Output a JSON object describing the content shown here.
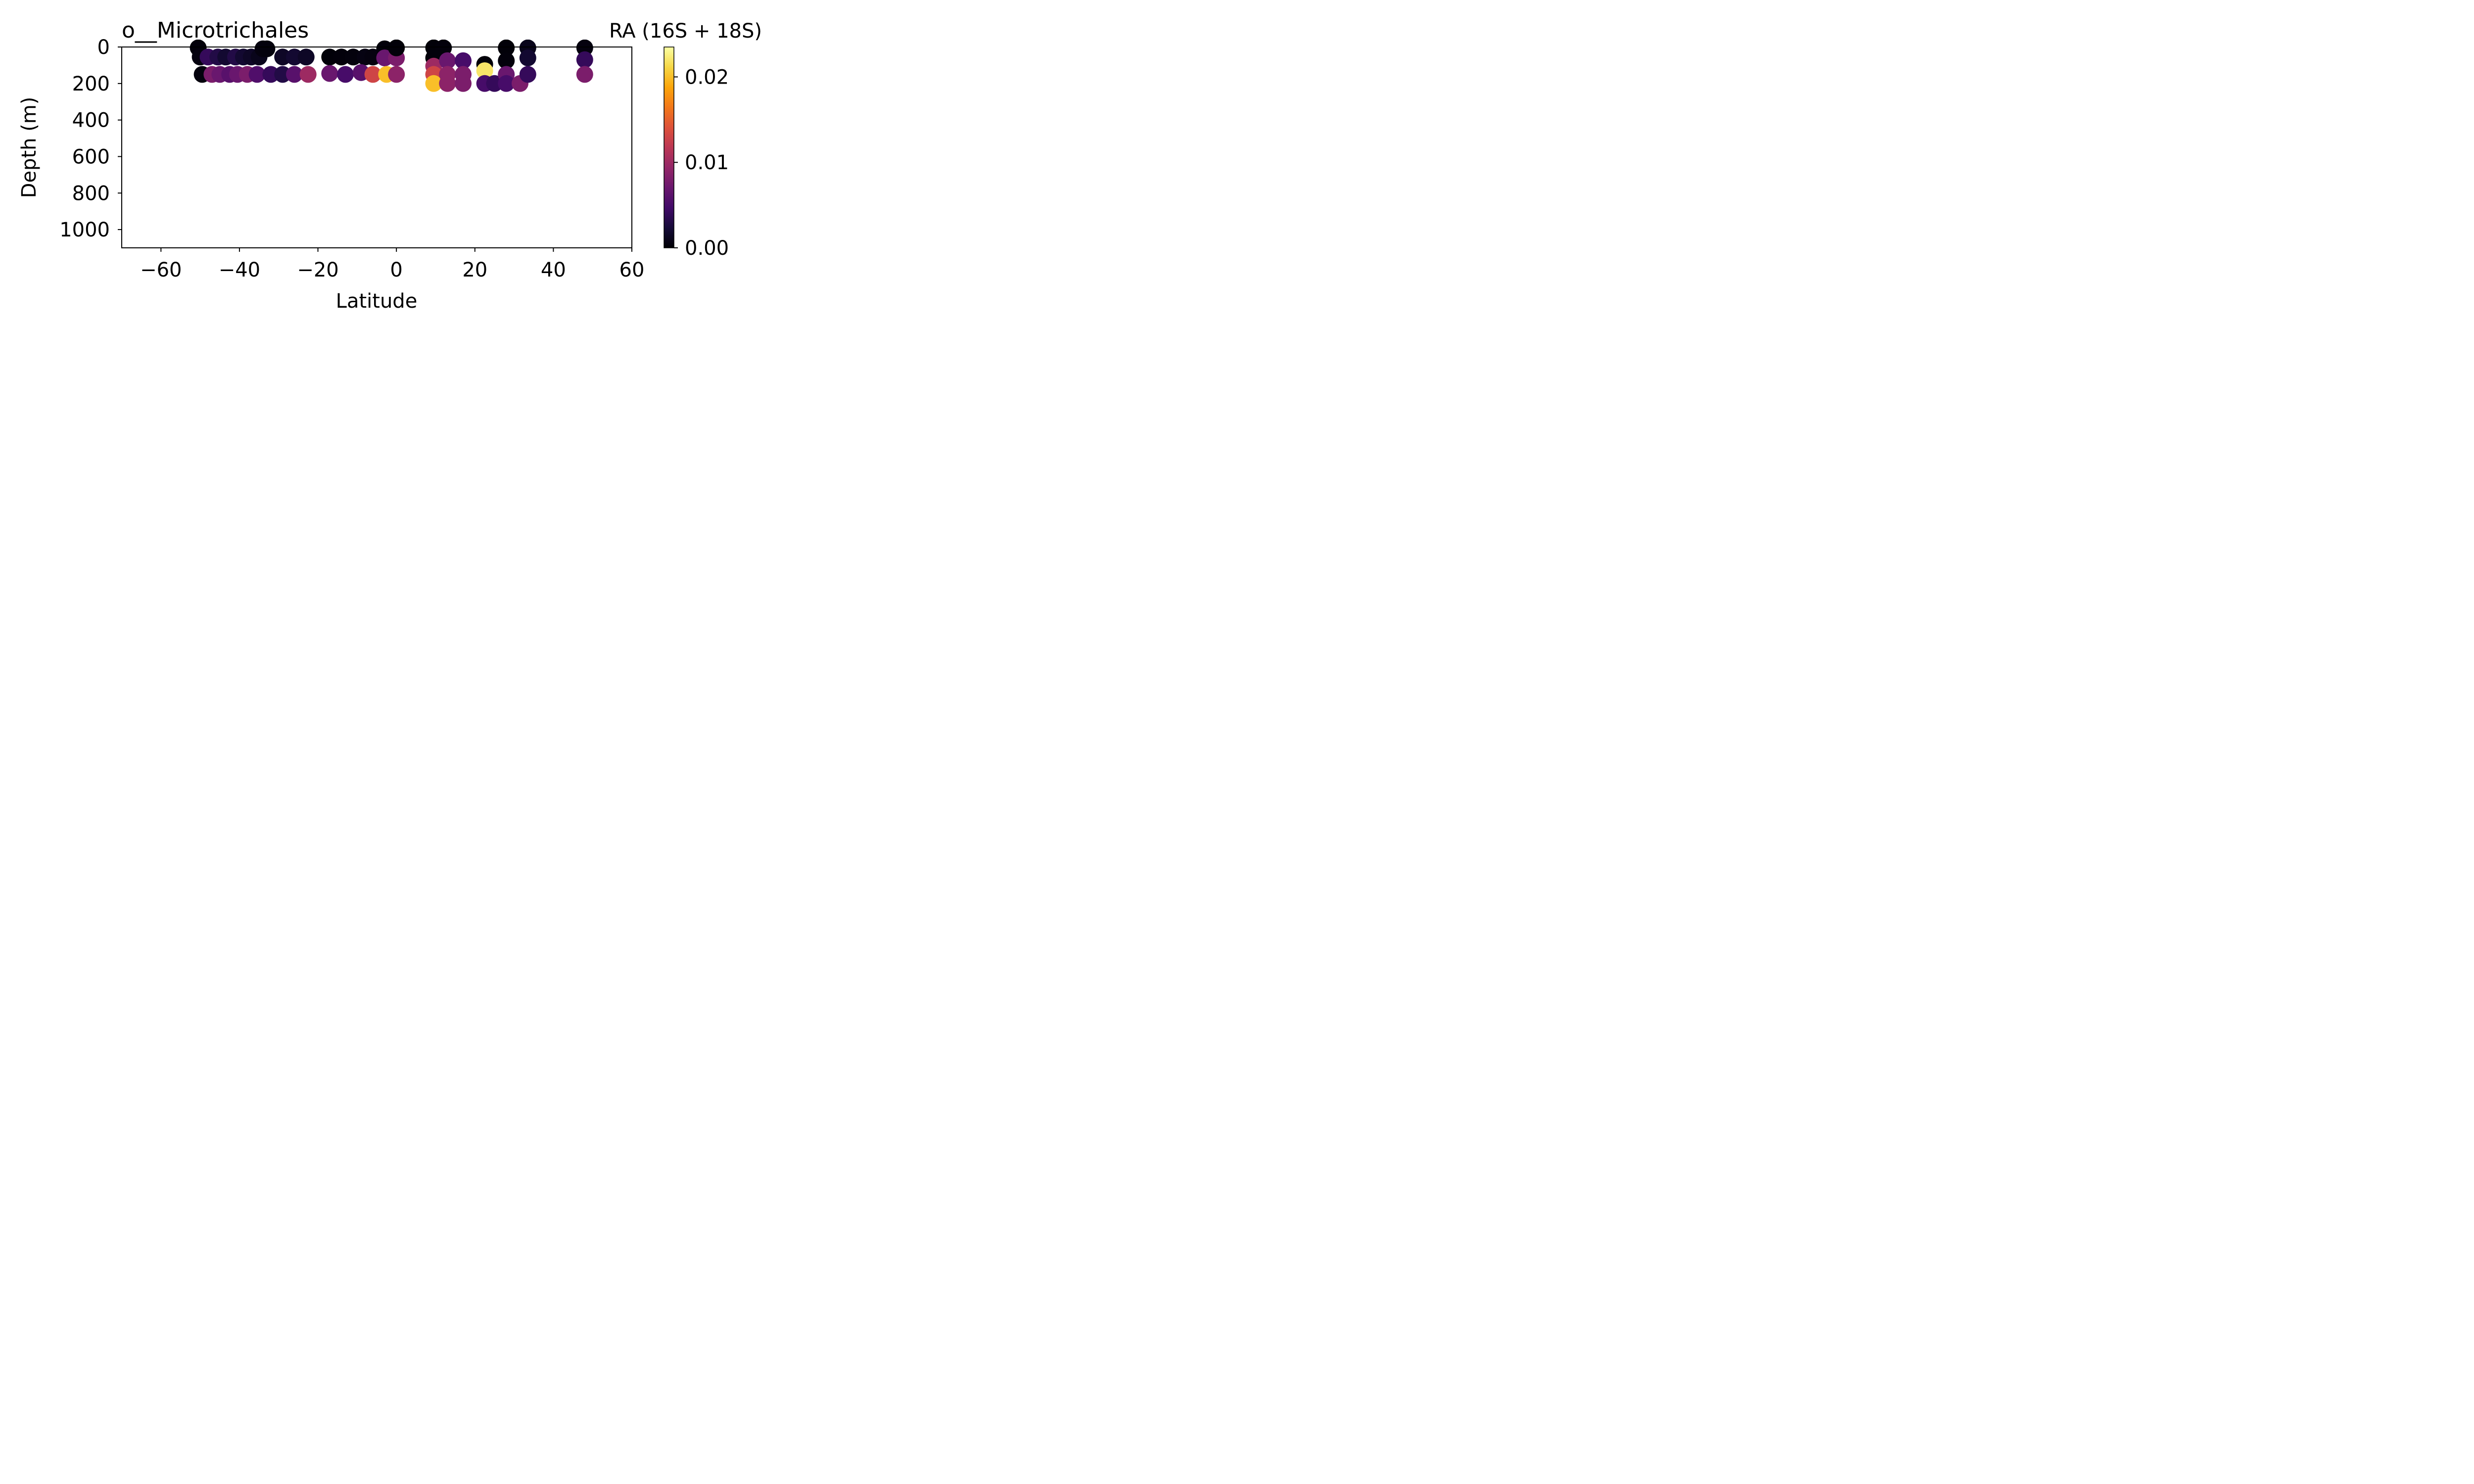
{
  "chart_data": {
    "type": "scatter",
    "title": "o__Microtrichales",
    "colorbar_label": "RA (16S + 18S)",
    "xlabel": "Latitude",
    "ylabel": "Depth (m)",
    "xlim": [
      -70,
      60
    ],
    "ylim": [
      1100,
      0
    ],
    "y_inverted": true,
    "x_ticks": [
      -60,
      -40,
      -20,
      0,
      20,
      40,
      60
    ],
    "x_tick_labels": [
      "−60",
      "−40",
      "−20",
      "0",
      "20",
      "40",
      "60"
    ],
    "y_ticks": [
      0,
      200,
      400,
      600,
      800,
      1000
    ],
    "y_tick_labels": [
      "0",
      "200",
      "400",
      "600",
      "800",
      "1000"
    ],
    "colorbar_range": [
      0,
      0.0235
    ],
    "colorbar_ticks": [
      0.0,
      0.01,
      0.02
    ],
    "colorbar_tick_labels": [
      "0.00",
      "0.01",
      "0.02"
    ],
    "colormap": "inferno",
    "grid": false,
    "points": [
      {
        "lat": -50.5,
        "depth": 5,
        "ra": 0.0003
      },
      {
        "lat": -50,
        "depth": 55,
        "ra": 0.0005
      },
      {
        "lat": -48,
        "depth": 55,
        "ra": 0.004
      },
      {
        "lat": -45.5,
        "depth": 55,
        "ra": 0.003
      },
      {
        "lat": -43.5,
        "depth": 55,
        "ra": 0.002
      },
      {
        "lat": -41,
        "depth": 55,
        "ra": 0.003
      },
      {
        "lat": -39,
        "depth": 55,
        "ra": 0.002
      },
      {
        "lat": -37,
        "depth": 55,
        "ra": 0.0015
      },
      {
        "lat": -35,
        "depth": 55,
        "ra": 0.001
      },
      {
        "lat": -34,
        "depth": 10,
        "ra": 0.0005
      },
      {
        "lat": -33,
        "depth": 10,
        "ra": 0.0004
      },
      {
        "lat": -29,
        "depth": 55,
        "ra": 0.0015
      },
      {
        "lat": -26,
        "depth": 55,
        "ra": 0.002
      },
      {
        "lat": -23,
        "depth": 55,
        "ra": 0.0015
      },
      {
        "lat": -17,
        "depth": 55,
        "ra": 0.0002
      },
      {
        "lat": -14,
        "depth": 55,
        "ra": 0.0003
      },
      {
        "lat": -11,
        "depth": 55,
        "ra": 0.0004
      },
      {
        "lat": -8,
        "depth": 55,
        "ra": 0.0006
      },
      {
        "lat": -6,
        "depth": 55,
        "ra": 0.0005
      },
      {
        "lat": -3,
        "depth": 10,
        "ra": 0.0003
      },
      {
        "lat": -3,
        "depth": 60,
        "ra": 0.007
      },
      {
        "lat": 0,
        "depth": 60,
        "ra": 0.008
      },
      {
        "lat": 0,
        "depth": 5,
        "ra": 0.0002
      },
      {
        "lat": -49.5,
        "depth": 150,
        "ra": 0.0004
      },
      {
        "lat": -47,
        "depth": 150,
        "ra": 0.008
      },
      {
        "lat": -45,
        "depth": 150,
        "ra": 0.007
      },
      {
        "lat": -42.5,
        "depth": 150,
        "ra": 0.006
      },
      {
        "lat": -40.5,
        "depth": 150,
        "ra": 0.007
      },
      {
        "lat": -38,
        "depth": 150,
        "ra": 0.008
      },
      {
        "lat": -35.5,
        "depth": 150,
        "ra": 0.0055
      },
      {
        "lat": -32,
        "depth": 150,
        "ra": 0.004
      },
      {
        "lat": -29,
        "depth": 150,
        "ra": 0.003
      },
      {
        "lat": -26,
        "depth": 150,
        "ra": 0.006
      },
      {
        "lat": -22.5,
        "depth": 150,
        "ra": 0.01
      },
      {
        "lat": -17,
        "depth": 145,
        "ra": 0.007
      },
      {
        "lat": -13,
        "depth": 150,
        "ra": 0.005
      },
      {
        "lat": -9,
        "depth": 140,
        "ra": 0.006
      },
      {
        "lat": -6,
        "depth": 150,
        "ra": 0.013
      },
      {
        "lat": -2.5,
        "depth": 150,
        "ra": 0.02
      },
      {
        "lat": 0,
        "depth": 150,
        "ra": 0.009
      },
      {
        "lat": 9.5,
        "depth": 5,
        "ra": 0.0002
      },
      {
        "lat": 12,
        "depth": 5,
        "ra": 0.0003
      },
      {
        "lat": 9.5,
        "depth": 60,
        "ra": 0.0003
      },
      {
        "lat": 9.5,
        "depth": 105,
        "ra": 0.01
      },
      {
        "lat": 9.5,
        "depth": 150,
        "ra": 0.013
      },
      {
        "lat": 9.5,
        "depth": 200,
        "ra": 0.02
      },
      {
        "lat": 13,
        "depth": 75,
        "ra": 0.007
      },
      {
        "lat": 13,
        "depth": 150,
        "ra": 0.009
      },
      {
        "lat": 13,
        "depth": 200,
        "ra": 0.009
      },
      {
        "lat": 17,
        "depth": 75,
        "ra": 0.005
      },
      {
        "lat": 17,
        "depth": 150,
        "ra": 0.008
      },
      {
        "lat": 17,
        "depth": 200,
        "ra": 0.008
      },
      {
        "lat": 22.5,
        "depth": 95,
        "ra": 0.0002
      },
      {
        "lat": 22.5,
        "depth": 130,
        "ra": 0.022
      },
      {
        "lat": 22.5,
        "depth": 200,
        "ra": 0.005
      },
      {
        "lat": 25,
        "depth": 200,
        "ra": 0.004
      },
      {
        "lat": 28,
        "depth": 5,
        "ra": 0.0002
      },
      {
        "lat": 28,
        "depth": 75,
        "ra": 0.0003
      },
      {
        "lat": 28,
        "depth": 150,
        "ra": 0.007
      },
      {
        "lat": 28,
        "depth": 200,
        "ra": 0.005
      },
      {
        "lat": 31.5,
        "depth": 200,
        "ra": 0.008
      },
      {
        "lat": 33.5,
        "depth": 5,
        "ra": 0.001
      },
      {
        "lat": 33.5,
        "depth": 60,
        "ra": 0.002
      },
      {
        "lat": 33.5,
        "depth": 150,
        "ra": 0.004
      },
      {
        "lat": 48,
        "depth": 5,
        "ra": 0.0005
      },
      {
        "lat": 48,
        "depth": 70,
        "ra": 0.004
      },
      {
        "lat": 48,
        "depth": 150,
        "ra": 0.008
      }
    ]
  }
}
